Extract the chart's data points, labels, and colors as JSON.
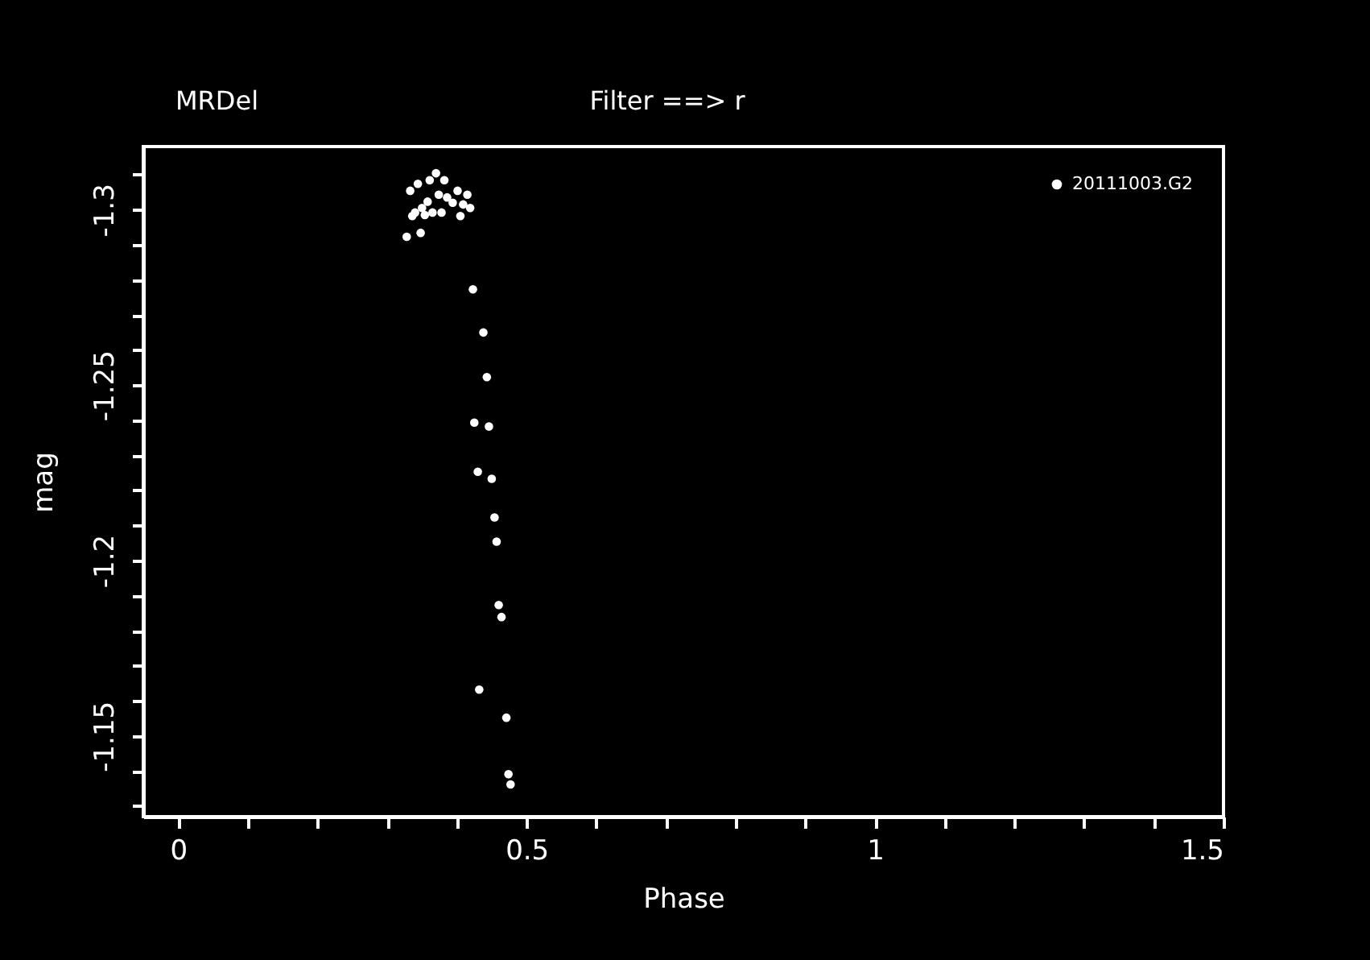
{
  "chart_data": {
    "type": "scatter",
    "title": "MRDel",
    "subtitle": "Filter ==> r",
    "xlabel": "Phase",
    "ylabel": "mag",
    "xlim": [
      -0.05,
      1.5
    ],
    "ylim": [
      -1.127,
      -1.318
    ],
    "xticks": [
      0,
      {
        "value": 0.1,
        "label": null
      },
      {
        "value": 0.2,
        "label": null
      },
      {
        "value": 0.3,
        "label": null
      },
      {
        "value": 0.4,
        "label": null
      },
      0.5,
      {
        "value": 0.6,
        "label": null
      },
      {
        "value": 0.7,
        "label": null
      },
      {
        "value": 0.8,
        "label": null
      },
      {
        "value": 0.9,
        "label": null
      },
      1,
      {
        "value": 1.1,
        "label": null
      },
      {
        "value": 1.2,
        "label": null
      },
      {
        "value": 1.3,
        "label": null
      },
      {
        "value": 1.4,
        "label": null
      },
      1.5
    ],
    "yticks": [
      {
        "value": -1.31,
        "label": null
      },
      -1.3,
      {
        "value": -1.29,
        "label": null
      },
      {
        "value": -1.28,
        "label": null
      },
      {
        "value": -1.27,
        "label": null
      },
      {
        "value": -1.26,
        "label": null
      },
      -1.25,
      {
        "value": -1.24,
        "label": null
      },
      {
        "value": -1.23,
        "label": null
      },
      {
        "value": -1.22,
        "label": null
      },
      {
        "value": -1.21,
        "label": null
      },
      -1.2,
      {
        "value": -1.19,
        "label": null
      },
      {
        "value": -1.18,
        "label": null
      },
      {
        "value": -1.17,
        "label": null
      },
      {
        "value": -1.16,
        "label": null
      },
      -1.15,
      {
        "value": -1.14,
        "label": null
      },
      {
        "value": -1.13,
        "label": null
      }
    ],
    "grid": false,
    "legend": "top right",
    "marker": "circle",
    "series": [
      {
        "name": "20111003.G2",
        "color": "#ffffff",
        "x": [
          0.37,
          0.344,
          0.361,
          0.382,
          0.333,
          0.374,
          0.386,
          0.401,
          0.415,
          0.358,
          0.394,
          0.409,
          0.419,
          0.35,
          0.34,
          0.365,
          0.378,
          0.336,
          0.354,
          0.405,
          0.328,
          0.348,
          0.423,
          0.438,
          0.443,
          0.425,
          0.446,
          0.43,
          0.45,
          0.454,
          0.457,
          0.46,
          0.464,
          0.432,
          0.471,
          0.474,
          0.477
        ],
        "values": [
          -1.3104,
          -1.3074,
          -1.3084,
          -1.3084,
          -1.3054,
          -1.3043,
          -1.3035,
          -1.3054,
          -1.3043,
          -1.3023,
          -1.302,
          -1.3015,
          -1.3005,
          -1.3005,
          -1.2992,
          -1.2992,
          -1.2992,
          -1.2982,
          -1.2985,
          -1.2982,
          -1.2923,
          -1.2934,
          -1.2773,
          -1.265,
          -1.2523,
          -1.2393,
          -1.2382,
          -1.2253,
          -1.2233,
          -1.2123,
          -1.2054,
          -1.1873,
          -1.1839,
          -1.1632,
          -1.1552,
          -1.1391,
          -1.1362
        ]
      }
    ]
  }
}
